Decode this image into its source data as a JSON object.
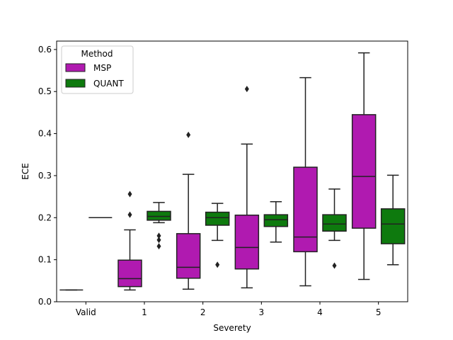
{
  "chart_data": {
    "type": "box",
    "xlabel": "Severety",
    "ylabel": "ECE",
    "ylim": [
      0.0,
      0.62
    ],
    "yticks": [
      0.0,
      0.1,
      0.2,
      0.3,
      0.4,
      0.5,
      0.6
    ],
    "ytick_labels": [
      "0.0",
      "0.1",
      "0.2",
      "0.3",
      "0.4",
      "0.5",
      "0.6"
    ],
    "categories": [
      "Valid",
      "1",
      "2",
      "3",
      "4",
      "5"
    ],
    "legend": {
      "title": "Method",
      "position": "top-left",
      "entries": [
        {
          "label": "MSP",
          "color": "#b01ab0"
        },
        {
          "label": "QUANT",
          "color": "#0e7a0e"
        }
      ]
    },
    "series": [
      {
        "name": "MSP",
        "color": "#b01ab0",
        "boxes": [
          {
            "category": "Valid",
            "whislo": 0.028,
            "q1": 0.028,
            "med": 0.028,
            "q3": 0.028,
            "whishi": 0.028,
            "fliers": []
          },
          {
            "category": "1",
            "whislo": 0.028,
            "q1": 0.036,
            "med": 0.055,
            "q3": 0.099,
            "whishi": 0.171,
            "fliers": [
              0.207,
              0.256
            ]
          },
          {
            "category": "2",
            "whislo": 0.03,
            "q1": 0.056,
            "med": 0.082,
            "q3": 0.162,
            "whishi": 0.303,
            "fliers": [
              0.397
            ]
          },
          {
            "category": "3",
            "whislo": 0.033,
            "q1": 0.078,
            "med": 0.129,
            "q3": 0.206,
            "whishi": 0.375,
            "fliers": [
              0.506
            ]
          },
          {
            "category": "4",
            "whislo": 0.038,
            "q1": 0.119,
            "med": 0.154,
            "q3": 0.32,
            "whishi": 0.533,
            "fliers": []
          },
          {
            "category": "5",
            "whislo": 0.053,
            "q1": 0.175,
            "med": 0.298,
            "q3": 0.445,
            "whishi": 0.592,
            "fliers": []
          }
        ]
      },
      {
        "name": "QUANT",
        "color": "#0e7a0e",
        "boxes": [
          {
            "category": "Valid",
            "whislo": 0.2,
            "q1": 0.2,
            "med": 0.2,
            "q3": 0.2,
            "whishi": 0.2,
            "fliers": []
          },
          {
            "category": "1",
            "whislo": 0.188,
            "q1": 0.194,
            "med": 0.203,
            "q3": 0.215,
            "whishi": 0.236,
            "fliers": [
              0.157,
              0.147,
              0.132
            ]
          },
          {
            "category": "2",
            "whislo": 0.146,
            "q1": 0.182,
            "med": 0.2,
            "q3": 0.213,
            "whishi": 0.234,
            "fliers": [
              0.088
            ]
          },
          {
            "category": "3",
            "whislo": 0.142,
            "q1": 0.179,
            "med": 0.195,
            "q3": 0.207,
            "whishi": 0.238,
            "fliers": []
          },
          {
            "category": "4",
            "whislo": 0.146,
            "q1": 0.168,
            "med": 0.185,
            "q3": 0.207,
            "whishi": 0.268,
            "fliers": [
              0.086
            ]
          },
          {
            "category": "5",
            "whislo": 0.088,
            "q1": 0.138,
            "med": 0.185,
            "q3": 0.221,
            "whishi": 0.301,
            "fliers": []
          }
        ]
      }
    ]
  }
}
